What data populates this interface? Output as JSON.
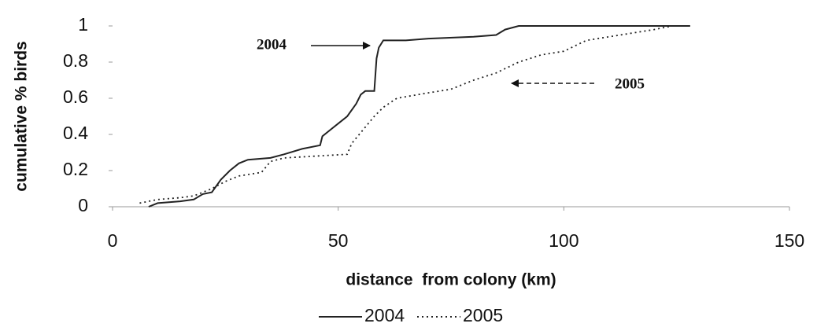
{
  "chart_data": {
    "type": "line",
    "xlabel": "distance  from colony (km)",
    "ylabel": "cumulative % birds",
    "xlim": [
      0,
      150
    ],
    "xticks": [
      0,
      50,
      100,
      150
    ],
    "ylim": [
      0,
      1
    ],
    "yticks": [
      0,
      0.2,
      0.4,
      0.6,
      0.8,
      1
    ],
    "grid": false,
    "legend": "bottom",
    "annotations": [
      "2004",
      "2005"
    ],
    "series": [
      {
        "name": "2004",
        "color": "#222222",
        "style": "solid",
        "x": [
          8,
          10,
          15,
          18,
          20,
          22,
          24,
          26,
          28,
          30,
          35,
          38,
          42,
          46,
          46.5,
          48,
          50,
          52,
          54,
          55,
          56,
          58,
          58.5,
          59,
          60,
          65,
          70,
          80,
          85,
          87,
          90,
          128
        ],
        "values": [
          0,
          0.02,
          0.03,
          0.04,
          0.07,
          0.08,
          0.15,
          0.2,
          0.24,
          0.26,
          0.27,
          0.29,
          0.32,
          0.34,
          0.39,
          0.42,
          0.46,
          0.5,
          0.57,
          0.62,
          0.64,
          0.64,
          0.82,
          0.88,
          0.92,
          0.92,
          0.93,
          0.94,
          0.95,
          0.98,
          1,
          1
        ]
      },
      {
        "name": "2005",
        "color": "#222222",
        "style": "dotted",
        "x": [
          6,
          10,
          15,
          18,
          22,
          25,
          28,
          33,
          35,
          38,
          45,
          52,
          53,
          55,
          58,
          60,
          63,
          70,
          75,
          80,
          85,
          90,
          95,
          100,
          105,
          110,
          115,
          120,
          124
        ],
        "values": [
          0.02,
          0.04,
          0.05,
          0.06,
          0.1,
          0.14,
          0.17,
          0.19,
          0.25,
          0.27,
          0.28,
          0.29,
          0.35,
          0.41,
          0.5,
          0.55,
          0.6,
          0.63,
          0.65,
          0.7,
          0.74,
          0.8,
          0.84,
          0.86,
          0.92,
          0.94,
          0.96,
          0.98,
          1
        ]
      }
    ]
  }
}
